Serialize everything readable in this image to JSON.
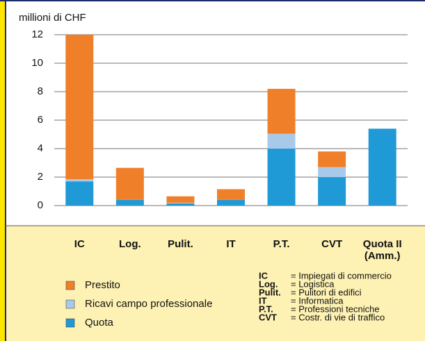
{
  "chart_data": {
    "type": "stacked_bar",
    "y_label": "millioni di CHF",
    "categories": [
      "IC",
      "Log.",
      "Pulit.",
      "IT",
      "P.T.",
      "CVT",
      "Quota II (Amm.)"
    ],
    "series": [
      {
        "name": "Prestito",
        "color": "#f07f2a",
        "values": [
          10.15,
          2.25,
          0.45,
          0.75,
          3.15,
          1.1,
          0
        ]
      },
      {
        "name": "Ricavi campo professionale",
        "color": "#a9c9ea",
        "values": [
          0.15,
          0,
          0.05,
          0,
          1.05,
          0.7,
          0
        ]
      },
      {
        "name": "Quota",
        "color": "#1f9ad6",
        "values": [
          1.7,
          0.4,
          0.15,
          0.4,
          4.0,
          2.0,
          5.4
        ]
      }
    ],
    "ylim": [
      0,
      12
    ],
    "yticks": [
      0,
      2,
      4,
      6,
      8,
      10,
      12
    ],
    "grid": true,
    "glossary": [
      {
        "abbr": "IC",
        "text": "= Impiegati di commercio"
      },
      {
        "abbr": "Log.",
        "text": "= Logistica"
      },
      {
        "abbr": "Pulit.",
        "text": "= Pulitori di edifici"
      },
      {
        "abbr": "IT",
        "text": "= Informatica"
      },
      {
        "abbr": "P.T.",
        "text": "= Professioni tecniche"
      },
      {
        "abbr": "CVT",
        "text": "= Costr. di vie di traffico"
      }
    ]
  }
}
